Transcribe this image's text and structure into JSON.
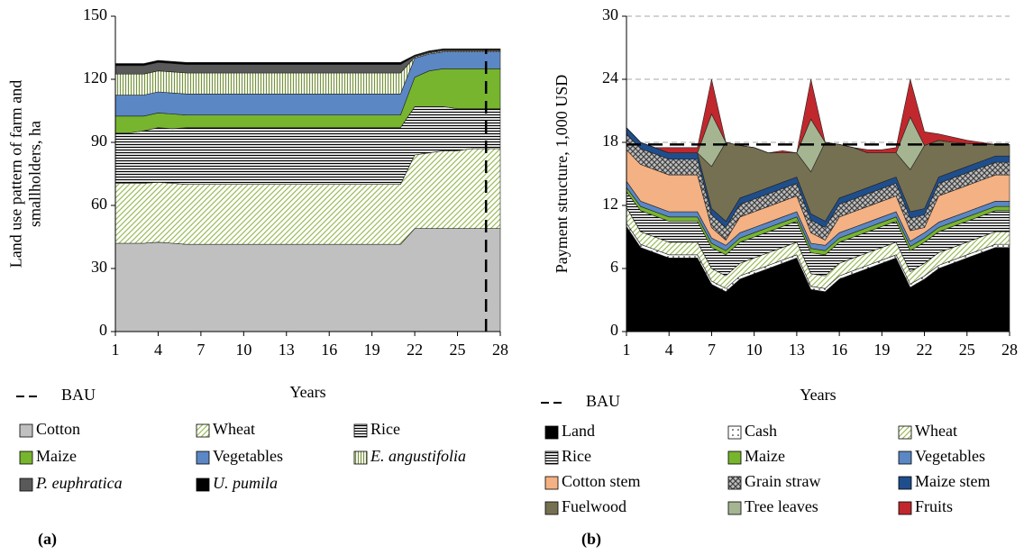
{
  "chart_data": [
    {
      "type": "area",
      "panel_label": "(a)",
      "xlabel": "Years",
      "ylabel": [
        "Land use pattern of farm and",
        "smallholders, ha"
      ],
      "x": [
        1,
        2,
        3,
        4,
        5,
        6,
        7,
        8,
        9,
        10,
        11,
        12,
        13,
        14,
        15,
        16,
        17,
        18,
        19,
        20,
        21,
        22,
        23,
        24,
        25,
        26,
        27,
        28
      ],
      "xlim": [
        1,
        28
      ],
      "xticks": [
        1,
        4,
        7,
        10,
        13,
        16,
        19,
        22,
        25,
        28
      ],
      "ylim": [
        0,
        150
      ],
      "yticks": [
        0,
        30,
        60,
        90,
        120,
        150
      ],
      "grid": false,
      "bau": {
        "label": "BAU",
        "x": 27
      },
      "series": [
        {
          "name": "Cotton",
          "color": "#c0c0c0",
          "pattern": "solid",
          "values": [
            42,
            42,
            42,
            42.5,
            42,
            41.5,
            41.5,
            41.5,
            41.5,
            41.5,
            41.5,
            41.5,
            41.5,
            41.5,
            41.5,
            41.5,
            41.5,
            41.5,
            41.5,
            41.5,
            41.5,
            49,
            49,
            49,
            49,
            49,
            49,
            49
          ]
        },
        {
          "name": "Wheat",
          "color": "#9bbb59",
          "pattern": "diagonal",
          "values": [
            28.5,
            28.5,
            28.5,
            28.5,
            28.5,
            28.5,
            28.5,
            28.5,
            28.5,
            28.5,
            28.5,
            28.5,
            28.5,
            28.5,
            28.5,
            28.5,
            28.5,
            28.5,
            28.5,
            28.5,
            28.5,
            35,
            36,
            37,
            37,
            38,
            38,
            38
          ]
        },
        {
          "name": "Rice",
          "color": "#000000",
          "pattern": "horizontal",
          "values": [
            24,
            24,
            25,
            26,
            26,
            27,
            27,
            27,
            27,
            27,
            27,
            27,
            27,
            27,
            27,
            27,
            27,
            27,
            27,
            27,
            27,
            23,
            22,
            21,
            20,
            19,
            19,
            19
          ]
        },
        {
          "name": "Maize",
          "color": "#77b52e",
          "pattern": "solid",
          "values": [
            8,
            8,
            7,
            7,
            7,
            6,
            6,
            6,
            6,
            6,
            6,
            6,
            6,
            6,
            6,
            6,
            6,
            6,
            6,
            6,
            6,
            14,
            17,
            18,
            19,
            19,
            19,
            19
          ]
        },
        {
          "name": "Vegetables",
          "color": "#5b87c5",
          "pattern": "solid",
          "values": [
            10,
            10,
            10,
            10,
            10,
            10,
            10,
            10,
            10,
            10,
            10,
            10,
            10,
            10,
            10,
            10,
            10,
            10,
            10,
            10,
            10,
            9,
            8,
            8,
            8,
            8,
            8,
            8
          ]
        },
        {
          "name": "E. angustifolia",
          "color": "#77933c",
          "pattern": "vertical",
          "italic": true,
          "values": [
            10,
            10,
            10,
            10,
            10,
            10,
            10,
            10,
            10,
            10,
            10,
            10,
            10,
            10,
            10,
            10,
            10,
            10,
            10,
            10,
            10,
            0.5,
            0.5,
            0.5,
            0.5,
            0.5,
            0.5,
            0.5
          ]
        },
        {
          "name": "P. euphratica",
          "color": "#595959",
          "pattern": "solid",
          "italic": true,
          "values": [
            4,
            4,
            4,
            4,
            4,
            4,
            4,
            4,
            4,
            4,
            4,
            4,
            4,
            4,
            4,
            4,
            4,
            4,
            4,
            4,
            4,
            0.5,
            0.5,
            0.5,
            0.5,
            0.5,
            0.5,
            0.5
          ]
        },
        {
          "name": "U. pumila",
          "color": "#000000",
          "pattern": "solid",
          "italic": true,
          "values": [
            1,
            1,
            1,
            1,
            1,
            1,
            1,
            1,
            1,
            1,
            1,
            1,
            1,
            1,
            1,
            1,
            1,
            1,
            1,
            1,
            1,
            0.5,
            0.5,
            0.5,
            0.5,
            0.5,
            0.5,
            0.5
          ]
        }
      ]
    },
    {
      "type": "area",
      "panel_label": "(b)",
      "xlabel": "Years",
      "ylabel": [
        "Payment structure, 1,000 USD"
      ],
      "x": [
        1,
        2,
        3,
        4,
        5,
        6,
        7,
        8,
        9,
        10,
        11,
        12,
        13,
        14,
        15,
        16,
        17,
        18,
        19,
        20,
        21,
        22,
        23,
        24,
        25,
        26,
        27,
        28
      ],
      "xlim": [
        1,
        28
      ],
      "xticks": [
        1,
        4,
        7,
        10,
        13,
        16,
        19,
        22,
        25,
        28
      ],
      "ylim": [
        0,
        30
      ],
      "yticks": [
        0,
        6,
        12,
        18,
        24,
        30
      ],
      "grid": true,
      "bau": {
        "label": "BAU",
        "y": 17.8
      },
      "series": [
        {
          "name": "Land",
          "color": "#000000",
          "pattern": "solid",
          "values": [
            10,
            8,
            7.5,
            7,
            7,
            7,
            4.5,
            3.8,
            5,
            5.5,
            6,
            6.5,
            7,
            4,
            3.8,
            5,
            5.5,
            6,
            6.5,
            7,
            4.2,
            5,
            6,
            6.5,
            7,
            7.5,
            8,
            8
          ]
        },
        {
          "name": "Cash",
          "color": "#000000",
          "pattern": "dots",
          "values": [
            0.3,
            0.3,
            0.3,
            0.3,
            0.3,
            0.3,
            0.3,
            0.3,
            0.3,
            0.3,
            0.3,
            0.3,
            0.3,
            0.3,
            0.3,
            0.3,
            0.3,
            0.3,
            0.3,
            0.3,
            0.3,
            0.3,
            0.3,
            0.3,
            0.3,
            0.3,
            0.3,
            0.3
          ]
        },
        {
          "name": "Wheat",
          "color": "#9bbb59",
          "pattern": "diagonal",
          "values": [
            1.5,
            1.2,
            1.2,
            1.2,
            1.2,
            1.2,
            1.2,
            1.2,
            1.2,
            1.2,
            1.2,
            1.2,
            1.2,
            1.2,
            1.2,
            1.2,
            1.2,
            1.2,
            1.2,
            1.2,
            1.2,
            1.2,
            1.2,
            1.2,
            1.2,
            1.2,
            1.2,
            1.2
          ]
        },
        {
          "name": "Rice",
          "color": "#000000",
          "pattern": "horizontal",
          "values": [
            1.5,
            2,
            2,
            2,
            2,
            2,
            2,
            2,
            2,
            2,
            2,
            2,
            2,
            2,
            2,
            2,
            2,
            2,
            2,
            2,
            2,
            2,
            2,
            2,
            2,
            2,
            2,
            2
          ]
        },
        {
          "name": "Maize",
          "color": "#77b52e",
          "pattern": "solid",
          "values": [
            0.4,
            0.4,
            0.4,
            0.4,
            0.4,
            0.4,
            0.4,
            0.4,
            0.4,
            0.4,
            0.4,
            0.4,
            0.4,
            0.4,
            0.4,
            0.4,
            0.4,
            0.4,
            0.4,
            0.4,
            0.4,
            0.4,
            0.4,
            0.4,
            0.4,
            0.4,
            0.4,
            0.4
          ]
        },
        {
          "name": "Vegetables",
          "color": "#5b87c5",
          "pattern": "solid",
          "values": [
            0.6,
            0.5,
            0.5,
            0.5,
            0.5,
            0.5,
            0.5,
            0.5,
            0.5,
            0.5,
            0.5,
            0.5,
            0.5,
            0.5,
            0.5,
            0.5,
            0.5,
            0.5,
            0.5,
            0.5,
            0.5,
            0.5,
            0.5,
            0.5,
            0.5,
            0.5,
            0.5,
            0.5
          ]
        },
        {
          "name": "Cotton stem",
          "color": "#f4b183",
          "pattern": "solid",
          "values": [
            3,
            3.5,
            3.5,
            3.5,
            3.5,
            3.5,
            1,
            0.5,
            1.5,
            1.5,
            1.5,
            1.5,
            1.5,
            1,
            0.5,
            1.5,
            1.5,
            1.5,
            1.5,
            1.5,
            1,
            0.5,
            2.5,
            2.5,
            2.5,
            2.5,
            2.5,
            2.5
          ]
        },
        {
          "name": "Grain straw",
          "color": "#404040",
          "pattern": "crosshatch",
          "values": [
            1.5,
            1.5,
            1.5,
            1.5,
            1.5,
            1.5,
            1.2,
            1.2,
            1.2,
            1.2,
            1.2,
            1.2,
            1.2,
            1.2,
            1.2,
            1.2,
            1.2,
            1.2,
            1.2,
            1.2,
            1.2,
            1.2,
            1.2,
            1.2,
            1.2,
            1.2,
            1.2,
            1.2
          ]
        },
        {
          "name": "Maize stem",
          "color": "#1f4e8c",
          "pattern": "solid",
          "values": [
            0.6,
            0.6,
            0.6,
            0.6,
            0.6,
            0.6,
            0.6,
            0.6,
            0.6,
            0.6,
            0.6,
            0.6,
            0.6,
            0.6,
            0.6,
            0.6,
            0.6,
            0.6,
            0.6,
            0.6,
            0.6,
            0.6,
            0.6,
            0.6,
            0.6,
            0.6,
            0.6,
            0.6
          ]
        },
        {
          "name": "Fuelwood",
          "color": "#767052",
          "pattern": "solid",
          "values": [
            0,
            0,
            0,
            0,
            0,
            0,
            4,
            7.5,
            5,
            4.3,
            3.3,
            2.8,
            2.3,
            4,
            7.5,
            5.1,
            4.3,
            3.3,
            2.8,
            2.3,
            4,
            6,
            3.5,
            2.8,
            2.2,
            1.6,
            1.1,
            1.1
          ]
        },
        {
          "name": "Tree leaves",
          "color": "#a5b592",
          "pattern": "solid",
          "values": [
            0,
            0,
            0,
            0,
            0,
            0,
            5,
            0,
            0,
            0,
            0,
            0,
            0,
            5,
            0,
            0,
            0,
            0,
            0,
            0,
            5,
            0,
            0,
            0,
            0,
            0,
            0,
            0
          ]
        },
        {
          "name": "Fruits",
          "color": "#c0282d",
          "pattern": "solid",
          "values": [
            0,
            0,
            0,
            0.5,
            0.5,
            0.5,
            3.3,
            0,
            0,
            0,
            0,
            0.2,
            0,
            3.8,
            0,
            0,
            0,
            0.3,
            0.3,
            0.5,
            3.6,
            1.3,
            0.6,
            0.5,
            0.3,
            0.2,
            0,
            0
          ]
        }
      ]
    }
  ]
}
